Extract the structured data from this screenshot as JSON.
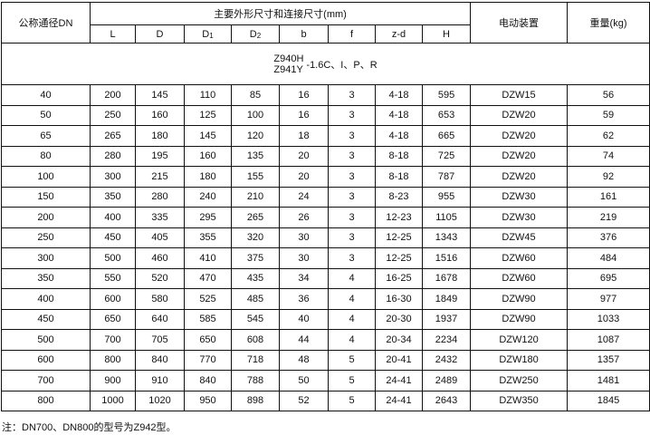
{
  "header": {
    "dn": "公称通径DN",
    "dimensions_group": "主要外形尺寸和连接尺寸(mm)",
    "columns": [
      {
        "main": "L",
        "sub": ""
      },
      {
        "main": "D",
        "sub": ""
      },
      {
        "main": "D",
        "sub": "1"
      },
      {
        "main": "D",
        "sub": "2"
      },
      {
        "main": "b",
        "sub": ""
      },
      {
        "main": "f",
        "sub": ""
      },
      {
        "main": "z-d",
        "sub": ""
      },
      {
        "main": "H",
        "sub": ""
      }
    ],
    "actuator": "电动装置",
    "weight": "重量(kg)"
  },
  "model": {
    "line1": "Z940H",
    "line2": "Z941Y",
    "suffix": "-1.6C、I、P、R"
  },
  "rows": [
    [
      "40",
      "200",
      "145",
      "110",
      "85",
      "16",
      "3",
      "4-18",
      "595",
      "DZW15",
      "56"
    ],
    [
      "50",
      "250",
      "160",
      "125",
      "100",
      "16",
      "3",
      "4-18",
      "653",
      "DZW20",
      "59"
    ],
    [
      "65",
      "265",
      "180",
      "145",
      "120",
      "18",
      "3",
      "4-18",
      "665",
      "DZW20",
      "62"
    ],
    [
      "80",
      "280",
      "195",
      "160",
      "135",
      "20",
      "3",
      "8-18",
      "725",
      "DZW20",
      "74"
    ],
    [
      "100",
      "300",
      "215",
      "180",
      "155",
      "20",
      "3",
      "8-18",
      "787",
      "DZW20",
      "92"
    ],
    [
      "150",
      "350",
      "280",
      "240",
      "210",
      "24",
      "3",
      "8-23",
      "955",
      "DZW30",
      "161"
    ],
    [
      "200",
      "400",
      "335",
      "295",
      "265",
      "26",
      "3",
      "12-23",
      "1105",
      "DZW30",
      "219"
    ],
    [
      "250",
      "450",
      "405",
      "355",
      "320",
      "30",
      "3",
      "12-25",
      "1343",
      "DZW45",
      "376"
    ],
    [
      "300",
      "500",
      "460",
      "410",
      "375",
      "30",
      "3",
      "12-25",
      "1516",
      "DZW60",
      "484"
    ],
    [
      "350",
      "550",
      "520",
      "470",
      "435",
      "34",
      "4",
      "16-25",
      "1678",
      "DZW60",
      "695"
    ],
    [
      "400",
      "600",
      "580",
      "525",
      "485",
      "36",
      "4",
      "16-30",
      "1849",
      "DZW90",
      "977"
    ],
    [
      "450",
      "650",
      "640",
      "585",
      "545",
      "40",
      "4",
      "20-30",
      "1937",
      "DZW90",
      "1033"
    ],
    [
      "500",
      "700",
      "705",
      "650",
      "608",
      "44",
      "4",
      "20-34",
      "2234",
      "DZW120",
      "1087"
    ],
    [
      "600",
      "800",
      "840",
      "770",
      "718",
      "48",
      "5",
      "20-41",
      "2432",
      "DZW180",
      "1357"
    ],
    [
      "700",
      "900",
      "910",
      "840",
      "788",
      "50",
      "5",
      "24-41",
      "2489",
      "DZW250",
      "1481"
    ],
    [
      "800",
      "1000",
      "1020",
      "950",
      "898",
      "52",
      "5",
      "24-41",
      "2643",
      "DZW350",
      "1845"
    ]
  ],
  "note": "注：DN700、DN800的型号为Z942型。"
}
